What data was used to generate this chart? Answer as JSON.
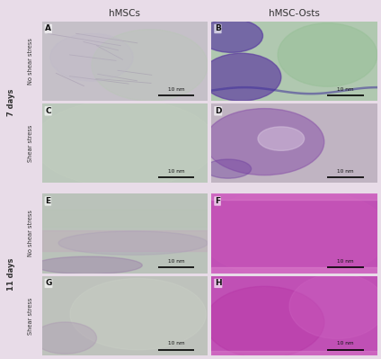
{
  "title_left": "hMSCs",
  "title_right": "hMSC-Osts",
  "row_group_labels": [
    "7 days",
    "11 days"
  ],
  "row_labels": [
    "No shear stress",
    "Shear stress",
    "No shear stress",
    "Shear stress"
  ],
  "panel_labels": [
    "A",
    "B",
    "C",
    "D",
    "E",
    "F",
    "G",
    "H"
  ],
  "scale_bar_text": "10 nm",
  "background_color": "#e8dce8",
  "panels": [
    {
      "pattern": "A"
    },
    {
      "pattern": "B"
    },
    {
      "pattern": "C"
    },
    {
      "pattern": "D"
    },
    {
      "pattern": "E"
    },
    {
      "pattern": "F"
    },
    {
      "pattern": "G"
    },
    {
      "pattern": "H"
    }
  ]
}
